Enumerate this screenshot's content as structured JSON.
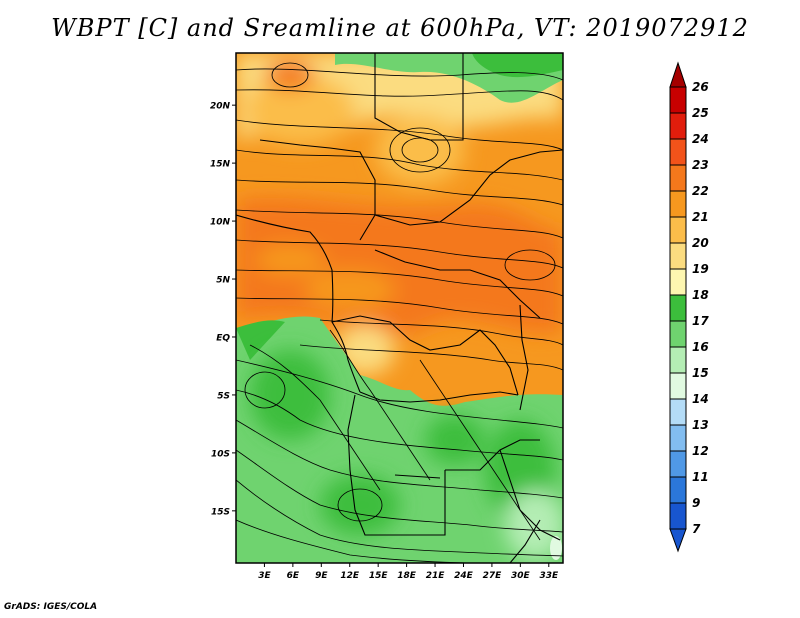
{
  "title": "WBPT [C] and Sreamline at 600hPa, VT: 2019072912",
  "credit": "GrADS: IGES/COLA",
  "map": {
    "lat_range": [
      -19.5,
      24.5
    ],
    "lon_range": [
      0,
      34.5
    ],
    "lat_ticks": [
      {
        "value": 20,
        "label": "20N"
      },
      {
        "value": 15,
        "label": "15N"
      },
      {
        "value": 10,
        "label": "10N"
      },
      {
        "value": 5,
        "label": "5N"
      },
      {
        "value": 0,
        "label": "EQ"
      },
      {
        "value": -5,
        "label": "5S"
      },
      {
        "value": -10,
        "label": "10S"
      },
      {
        "value": -15,
        "label": "15S"
      }
    ],
    "lon_ticks": [
      {
        "value": 3,
        "label": "3E"
      },
      {
        "value": 6,
        "label": "6E"
      },
      {
        "value": 9,
        "label": "9E"
      },
      {
        "value": 12,
        "label": "12E"
      },
      {
        "value": 15,
        "label": "15E"
      },
      {
        "value": 18,
        "label": "18E"
      },
      {
        "value": 21,
        "label": "21E"
      },
      {
        "value": 24,
        "label": "24E"
      },
      {
        "value": 27,
        "label": "27E"
      },
      {
        "value": 30,
        "label": "30E"
      },
      {
        "value": 33,
        "label": "33E"
      }
    ]
  },
  "colorbar": {
    "levels": [
      "26",
      "25",
      "24",
      "23",
      "22",
      "21",
      "20",
      "19",
      "18",
      "17",
      "16",
      "15",
      "14",
      "13",
      "12",
      "11",
      "9",
      "7"
    ],
    "colors": [
      "#a50000",
      "#c80000",
      "#e11d0c",
      "#f2531a",
      "#f4781c",
      "#f6981f",
      "#fbbd4a",
      "#fbdc80",
      "#fdf6b0",
      "#3cbe3c",
      "#6fd36f",
      "#b4edb4",
      "#e1fae1",
      "#b4dcf7",
      "#82bdf0",
      "#5099e6",
      "#2b77da",
      "#1856cf"
    ]
  }
}
